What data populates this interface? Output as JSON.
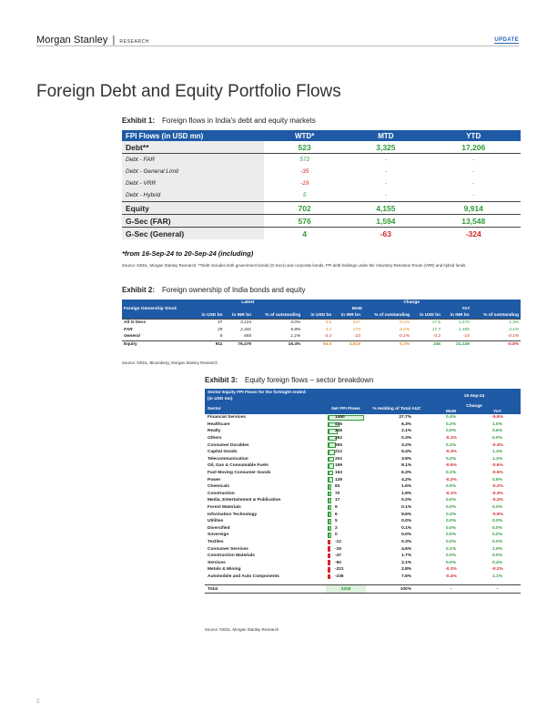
{
  "header": {
    "brand": "Morgan Stanley",
    "separator": "|",
    "brand_sub": "RESEARCH",
    "update_label": "UPDATE"
  },
  "page_title": "Foreign Debt and Equity Portfolio Flows",
  "exhibit1": {
    "label": "Exhibit 1:",
    "title": "Foreign flows in India's debt and equity markets",
    "columns": [
      "FPI Flows (in USD mn)",
      "WTD*",
      "MTD",
      "YTD"
    ],
    "rows": [
      {
        "label": "Debt**",
        "type": "main",
        "values": [
          "523",
          "3,325",
          "17,206"
        ],
        "colors": [
          "g",
          "g",
          "g"
        ]
      },
      {
        "label": "Debt - FAR",
        "type": "sub",
        "values": [
          "572",
          "-",
          "-"
        ],
        "colors": [
          "g",
          "g",
          "g"
        ]
      },
      {
        "label": "Debt - General Limit",
        "type": "sub",
        "values": [
          "-35",
          "-",
          "-"
        ],
        "colors": [
          "r",
          "g",
          "g"
        ]
      },
      {
        "label": "Debt - VRR",
        "type": "sub",
        "values": [
          "-19",
          "-",
          "-"
        ],
        "colors": [
          "r",
          "g",
          "g"
        ]
      },
      {
        "label": "Debt - Hybrid",
        "type": "sub",
        "values": [
          "5",
          "-",
          "-"
        ],
        "colors": [
          "g",
          "g",
          "g"
        ]
      },
      {
        "label": "Equity",
        "type": "main",
        "values": [
          "702",
          "4,155",
          "9,914"
        ],
        "colors": [
          "g",
          "g",
          "g"
        ]
      },
      {
        "label": "G-Sec (FAR)",
        "type": "main",
        "values": [
          "576",
          "1,594",
          "13,548"
        ],
        "colors": [
          "g",
          "g",
          "g"
        ]
      },
      {
        "label": "G-Sec (General)",
        "type": "main",
        "values": [
          "4",
          "-63",
          "-324"
        ],
        "colors": [
          "g",
          "r",
          "r"
        ]
      }
    ],
    "footnote": "*from 16-Sep-24 to 20-Sep-24 (including)",
    "source": "Source: NSDL, Morgan Stanley Research; **Debt includes both government bonds (G-Secs) and corporate bonds, FPI debt holdings under the Voluntary Retention Route (VRR) and hybrid funds."
  },
  "exhibit2": {
    "label": "Exhibit 2:",
    "title": "Foreign ownership of India bonds and equity",
    "group_headers": {
      "stock": "Foreign Ownership Stock",
      "latest": "Latest",
      "change": "Change",
      "mom": "MoM",
      "yoy": "YoY"
    },
    "columns": [
      "in USD bn",
      "in INR bn",
      "% of outstanding",
      "in USD bn",
      "in INR bn",
      "% of outstanding",
      "in USD bn",
      "in INR bn",
      "% of outstanding"
    ],
    "rows": [
      {
        "label": "All G-Secs",
        "italic": false,
        "values": [
          "37",
          "3,124",
          "3.0%",
          "3.0",
          "247",
          "0.2%",
          "17.5",
          "1,470",
          "1.3%"
        ]
      },
      {
        "label": "FAR",
        "italic": true,
        "values": [
          "29",
          "2,431",
          "5.8%",
          "3.2",
          "270",
          "0.6%",
          "17.7",
          "1,485",
          "3.1%"
        ]
      },
      {
        "label": "General",
        "italic": true,
        "values": [
          "8",
          "693",
          "1.1%",
          "-0.3",
          "-23",
          "-0.1%",
          "-0.2",
          "-14",
          "-0.1%"
        ]
      },
      {
        "label": "Equity",
        "italic": false,
        "values": [
          "911",
          "76,479",
          "16.4%",
          "54.0",
          "4,519",
          "0.3%",
          "245",
          "21,149",
          "-0.8%"
        ]
      }
    ],
    "source": "Source: NSDL, Bloomberg, Morgan Stanley Research"
  },
  "exhibit3": {
    "label": "Exhibit 3:",
    "title": "Equity foreign flows – sector breakdown",
    "header_line1": "Sector Equity FPI Flows for the fortnight ended:",
    "header_line2": "(in USD mn)",
    "date": "15-Sep-24",
    "columns": {
      "sector": "Sector",
      "net": "Net FPI Flows",
      "holding": "% Holding of Total AUC",
      "change": "Change",
      "mom": "MoM",
      "yoy": "YoY"
    },
    "rows": [
      {
        "sector": "Financial Services",
        "net": 1460,
        "holding": "27.7%",
        "mom": "0.4%",
        "yoy": "-5.5%"
      },
      {
        "sector": "Healthcare",
        "net": 435,
        "holding": "6.3%",
        "mom": "0.2%",
        "yoy": "1.0%"
      },
      {
        "sector": "Realty",
        "net": 346,
        "holding": "2.1%",
        "mom": "0.0%",
        "yoy": "0.6%"
      },
      {
        "sector": "Others",
        "net": 292,
        "holding": "0.3%",
        "mom": "-0.1%",
        "yoy": "0.0%"
      },
      {
        "sector": "Consumer Durables",
        "net": 265,
        "holding": "3.2%",
        "mom": "0.2%",
        "yoy": "-0.3%"
      },
      {
        "sector": "Capital Goods",
        "net": 212,
        "holding": "5.4%",
        "mom": "-0.3%",
        "yoy": "1.3%"
      },
      {
        "sector": "Telecommunication",
        "net": 202,
        "holding": "3.9%",
        "mom": "0.2%",
        "yoy": "1.3%"
      },
      {
        "sector": "Oil, Gas & Consumable Fuels",
        "net": 199,
        "holding": "8.1%",
        "mom": "-0.5%",
        "yoy": "-0.6%"
      },
      {
        "sector": "Fast Moving Consumer Goods",
        "net": 163,
        "holding": "6.3%",
        "mom": "0.1%",
        "yoy": "-0.5%"
      },
      {
        "sector": "Power",
        "net": 139,
        "holding": "4.2%",
        "mom": "-0.2%",
        "yoy": "0.9%"
      },
      {
        "sector": "Chemicals",
        "net": 83,
        "holding": "1.6%",
        "mom": "0.0%",
        "yoy": "-0.2%"
      },
      {
        "sector": "Construction",
        "net": 70,
        "holding": "1.9%",
        "mom": "-0.1%",
        "yoy": "-0.3%"
      },
      {
        "sector": "Media, Entertainment & Publication",
        "net": 17,
        "holding": "0.2%",
        "mom": "0.0%",
        "yoy": "-0.2%"
      },
      {
        "sector": "Forest Materials",
        "net": 9,
        "holding": "0.1%",
        "mom": "0.0%",
        "yoy": "0.0%"
      },
      {
        "sector": "Information Technology",
        "net": 6,
        "holding": "9.6%",
        "mom": "0.2%",
        "yoy": "-0.5%"
      },
      {
        "sector": "Utilities",
        "net": 5,
        "holding": "0.0%",
        "mom": "0.0%",
        "yoy": "0.0%"
      },
      {
        "sector": "Diversified",
        "net": 2,
        "holding": "0.1%",
        "mom": "0.0%",
        "yoy": "0.0%"
      },
      {
        "sector": "Sovereign",
        "net": 0,
        "holding": "0.0%",
        "mom": "0.0%",
        "yoy": "0.0%"
      },
      {
        "sector": "Textiles",
        "net": -12,
        "holding": "0.3%",
        "mom": "0.0%",
        "yoy": "0.0%"
      },
      {
        "sector": "Consumer Services",
        "net": -19,
        "holding": "4.6%",
        "mom": "0.1%",
        "yoy": "1.9%"
      },
      {
        "sector": "Construction Materials",
        "net": -47,
        "holding": "1.7%",
        "mom": "0.0%",
        "yoy": "0.0%"
      },
      {
        "sector": "Services",
        "net": -50,
        "holding": "2.1%",
        "mom": "0.0%",
        "yoy": "0.4%"
      },
      {
        "sector": "Metals & Mining",
        "net": -221,
        "holding": "2.8%",
        "mom": "-0.1%",
        "yoy": "-0.2%"
      },
      {
        "sector": "Automobile and Auto Components",
        "net": -236,
        "holding": "7.6%",
        "mom": "-0.4%",
        "yoy": "1.1%"
      }
    ],
    "total": {
      "sector": "Total",
      "net": "3328",
      "holding": "100%",
      "mom": "-",
      "yoy": "-"
    },
    "source": "Source: NSDL, Morgan Stanley Research"
  },
  "page_number": "2",
  "colors": {
    "header_blue": "#1f5aa6",
    "positive": "#2e9b3a",
    "negative": "#d3262a",
    "bar_positive": "#2e9b3a",
    "bar_negative": "#d3262a"
  }
}
